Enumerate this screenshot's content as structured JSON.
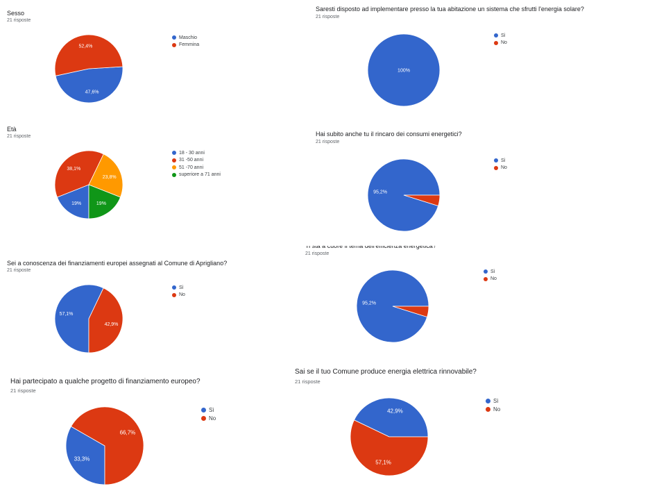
{
  "colors": {
    "blue": "#3366cc",
    "red": "#dc3912",
    "orange": "#ff9900",
    "green": "#109618"
  },
  "chart_data": [
    {
      "type": "pie",
      "title": "Sesso",
      "subtitle": "21 risposte",
      "categories": [
        "Maschio",
        "Femmina"
      ],
      "values": [
        47.6,
        52.4
      ],
      "labels": [
        "47,6%",
        "52,4%"
      ],
      "colors": [
        "#3366cc",
        "#dc3912"
      ],
      "legend": "right"
    },
    {
      "type": "pie",
      "title": "Età",
      "subtitle": "21 risposte",
      "categories": [
        "18 - 30 anni",
        "31 -50 anni",
        "51 -70 anni",
        "superiore a 71 anni"
      ],
      "values": [
        19,
        38.1,
        23.8,
        19
      ],
      "labels": [
        "19%",
        "38,1%",
        "23,8%",
        "19%"
      ],
      "colors": [
        "#3366cc",
        "#dc3912",
        "#ff9900",
        "#109618"
      ],
      "legend": "right"
    },
    {
      "type": "pie",
      "title": "Sei a conoscenza dei finanziamenti europei assegnati al Comune di Aprigliano?",
      "subtitle": "21 risposte",
      "categories": [
        "Sì",
        "No"
      ],
      "values": [
        57.1,
        42.9
      ],
      "labels": [
        "57,1%",
        "42,9%"
      ],
      "colors": [
        "#3366cc",
        "#dc3912"
      ],
      "legend": "right"
    },
    {
      "type": "pie",
      "title": "Hai partecipato a qualche progetto di finanziamento europeo?",
      "subtitle": "21 risposte",
      "categories": [
        "Sì",
        "No"
      ],
      "values": [
        33.3,
        66.7
      ],
      "labels": [
        "33,3%",
        "66,7%"
      ],
      "colors": [
        "#3366cc",
        "#dc3912"
      ],
      "legend": "right"
    },
    {
      "type": "pie",
      "title": "Saresti disposto ad implementare presso la tua abitazione un sistema che sfrutti l'energia solare?",
      "subtitle": "21 risposte",
      "categories": [
        "Sì",
        "No"
      ],
      "values": [
        100,
        0
      ],
      "labels": [
        "100%",
        ""
      ],
      "colors": [
        "#3366cc",
        "#dc3912"
      ],
      "legend": "right"
    },
    {
      "type": "pie",
      "title": "Hai subito anche tu il rincaro dei consumi energetici?",
      "subtitle": "21 risposte",
      "categories": [
        "Sì",
        "No"
      ],
      "values": [
        95.2,
        4.8
      ],
      "labels": [
        "95,2%",
        ""
      ],
      "colors": [
        "#3366cc",
        "#dc3912"
      ],
      "legend": "right"
    },
    {
      "type": "pie",
      "title": "Ti sta a cuore il tema dell'efficienza energetica?",
      "subtitle": "21 risposte",
      "categories": [
        "Sì",
        "No"
      ],
      "values": [
        95.2,
        4.8
      ],
      "labels": [
        "95,2%",
        ""
      ],
      "colors": [
        "#3366cc",
        "#dc3912"
      ],
      "legend": "right"
    },
    {
      "type": "pie",
      "title": "Sai se il tuo Comune produce energia elettrica rinnovabile?",
      "subtitle": "21 risposte",
      "categories": [
        "Sì",
        "No"
      ],
      "values": [
        42.9,
        57.1
      ],
      "labels": [
        "42,9%",
        "57,1%"
      ],
      "colors": [
        "#3366cc",
        "#dc3912"
      ],
      "legend": "right"
    }
  ]
}
